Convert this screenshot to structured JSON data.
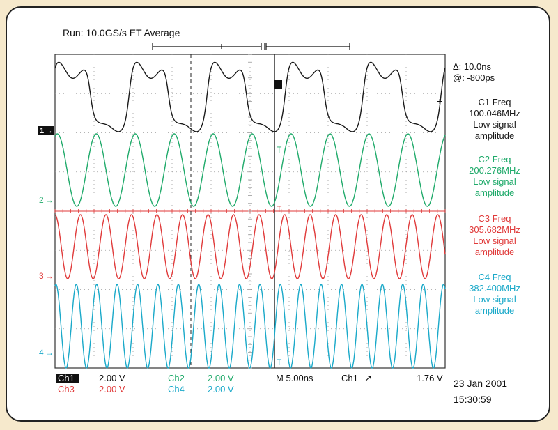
{
  "header": {
    "run_status": "Run: 10.0GS/s ET Average"
  },
  "cursor_readout": {
    "delta": "Δ: 10.0ns",
    "at": "@: -800ps"
  },
  "measurements": [
    {
      "title": "C1 Freq",
      "value": "100.046MHz",
      "note1": "Low signal",
      "note2": "amplitude",
      "color": "#1a1a1a"
    },
    {
      "title": "C2 Freq",
      "value": "200.276MHz",
      "note1": "Low signal",
      "note2": "amplitude",
      "color": "#1faa6a"
    },
    {
      "title": "C3 Freq",
      "value": "305.682MHz",
      "note1": "Low signal",
      "note2": "amplitude",
      "color": "#e03a3a"
    },
    {
      "title": "C4 Freq",
      "value": "382.400MHz",
      "note1": "Low signal",
      "note2": "amplitude",
      "color": "#1aa9c9"
    }
  ],
  "channel_markers": {
    "ch1": "1",
    "ch2": "2",
    "ch3": "3",
    "ch4": "4"
  },
  "footer": {
    "ch1_label": "Ch1",
    "ch1_scale": "2.00 V",
    "ch2_label": "Ch2",
    "ch2_scale": "2.00 V",
    "ch3_label": "Ch3",
    "ch3_scale": "2.00 V",
    "ch4_label": "Ch4",
    "ch4_scale": "2.00 V",
    "timebase": "M 5.00ns",
    "trigger_source": "Ch1",
    "trigger_slope": "↗",
    "trigger_level": "1.76 V",
    "date": "23 Jan 2001",
    "time": "15:30:59"
  },
  "colors": {
    "ch1": "#1a1a1a",
    "ch2": "#1faa6a",
    "ch3": "#e03a3a",
    "ch4": "#1aa9c9",
    "grid": "#9a9a9a"
  },
  "chart_data": {
    "type": "line",
    "title": "Run: 10.0GS/s ET Average",
    "xlabel": "",
    "ylabel": "",
    "x_units": "ns",
    "x_range": [
      0,
      50
    ],
    "grid": true,
    "divisions": {
      "x": 10,
      "y": 8
    },
    "series": [
      {
        "name": "Ch1",
        "freq_mhz": 100.046,
        "volts_per_div": 2.0,
        "shape": "distorted-square"
      },
      {
        "name": "Ch2",
        "freq_mhz": 200.276,
        "volts_per_div": 2.0,
        "shape": "sine"
      },
      {
        "name": "Ch3",
        "freq_mhz": 305.682,
        "volts_per_div": 2.0,
        "shape": "sine"
      },
      {
        "name": "Ch4",
        "freq_mhz": 382.4,
        "volts_per_div": 2.0,
        "shape": "sine"
      }
    ]
  }
}
